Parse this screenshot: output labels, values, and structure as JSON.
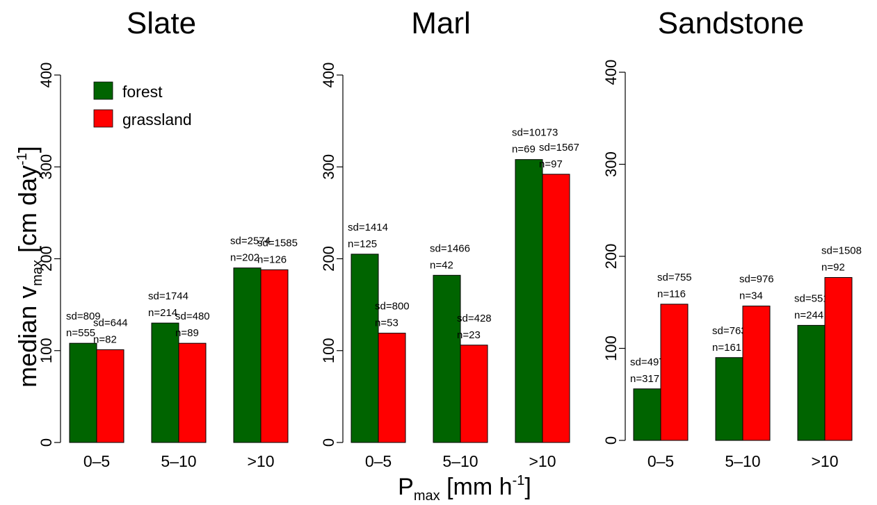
{
  "ylabel_main": "median v",
  "ylabel_sub": "max",
  "ylabel_unit": " [cm day",
  "ylabel_sup": "-1",
  "ylabel_close": "]",
  "xlabel_main": "P",
  "xlabel_sub": "max",
  "xlabel_unit": " [mm h",
  "xlabel_sup": "-1",
  "xlabel_close": "]",
  "legend": [
    {
      "name": "forest",
      "color": "#006400"
    },
    {
      "name": "grassland",
      "color": "#ff0000"
    }
  ],
  "chart_data": [
    {
      "type": "bar",
      "title": "Slate",
      "categories": [
        "0–5",
        "5–10",
        ">10"
      ],
      "ylim": [
        0,
        400
      ],
      "yticks": [
        "0",
        "100",
        "200",
        "300",
        "400"
      ],
      "series": [
        {
          "name": "forest",
          "color": "#006400",
          "values": [
            108,
            130,
            190
          ],
          "labels": [
            [
              "sd=809",
              "n=555"
            ],
            [
              "sd=1744",
              "n=214"
            ],
            [
              "sd=2574",
              "n=202"
            ]
          ]
        },
        {
          "name": "grassland",
          "color": "#ff0000",
          "values": [
            101,
            108,
            188
          ],
          "labels": [
            [
              "sd=644",
              "n=82"
            ],
            [
              "sd=480",
              "n=89"
            ],
            [
              "sd=1585",
              "n=126"
            ]
          ]
        }
      ]
    },
    {
      "type": "bar",
      "title": "Marl",
      "categories": [
        "0–5",
        "5–10",
        ">10"
      ],
      "ylim": [
        0,
        400
      ],
      "yticks": [
        "0",
        "100",
        "200",
        "300",
        "400"
      ],
      "series": [
        {
          "name": "forest",
          "color": "#006400",
          "values": [
            205,
            182,
            308
          ],
          "labels": [
            [
              "sd=1414",
              "n=125"
            ],
            [
              "sd=1466",
              "n=42"
            ],
            [
              "sd=10173",
              "n=69"
            ]
          ]
        },
        {
          "name": "grassland",
          "color": "#ff0000",
          "values": [
            119,
            106,
            292
          ],
          "labels": [
            [
              "sd=800",
              "n=53"
            ],
            [
              "sd=428",
              "n=23"
            ],
            [
              "sd=1567",
              "n=97"
            ]
          ]
        }
      ]
    },
    {
      "type": "bar",
      "title": "Sandstone",
      "categories": [
        "0–5",
        "5–10",
        ">10"
      ],
      "ylim": [
        0,
        400
      ],
      "yticks": [
        "0",
        "100",
        "200",
        "300",
        "400"
      ],
      "series": [
        {
          "name": "forest",
          "color": "#006400",
          "values": [
            56,
            90,
            125
          ],
          "labels": [
            [
              "sd=497",
              "n=317"
            ],
            [
              "sd=763",
              "n=161"
            ],
            [
              "sd=5518",
              "n=244"
            ]
          ]
        },
        {
          "name": "grassland",
          "color": "#ff0000",
          "values": [
            148,
            146,
            177
          ],
          "labels": [
            [
              "sd=755",
              "n=116"
            ],
            [
              "sd=976",
              "n=34"
            ],
            [
              "sd=1508",
              "n=92"
            ]
          ]
        }
      ]
    }
  ]
}
